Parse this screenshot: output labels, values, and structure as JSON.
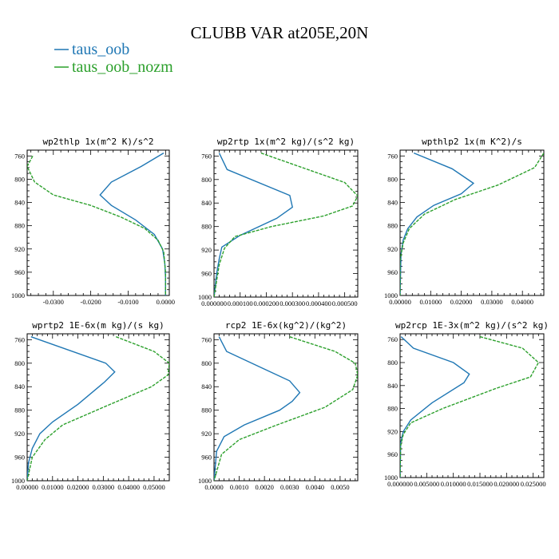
{
  "figure": {
    "title": "CLUBB VAR at205E,20N",
    "legend": [
      {
        "label": "taus_oob",
        "color": "#1f77b4"
      },
      {
        "label": "taus_oob_nozm",
        "color": "#2ca02c"
      }
    ]
  },
  "chart_data": [
    {
      "type": "line",
      "title": "wp2thlp   1x(m^2 K)/s^2",
      "xlim": [
        -0.037,
        0.001
      ],
      "ylim": [
        1000,
        750
      ],
      "xticks": [
        -0.03,
        -0.02,
        -0.01,
        0.0
      ],
      "xtick_labels": [
        "-0.0300",
        "-0.0200",
        "-0.0100",
        "0.0000"
      ],
      "yticks": [
        760,
        800,
        840,
        880,
        920,
        960,
        1000
      ],
      "series": [
        {
          "name": "taus_oob",
          "color": "#1f77b4",
          "dashed": false,
          "x": [
            -0.0005,
            -0.0065,
            -0.0145,
            -0.0175,
            -0.0145,
            -0.008,
            -0.003,
            -0.0008,
            -0.0002,
            0.0,
            0.0
          ],
          "y": [
            755,
            778,
            805,
            827,
            845,
            870,
            895,
            920,
            945,
            970,
            1000
          ]
        },
        {
          "name": "taus_oob_nozm",
          "color": "#2ca02c",
          "dashed": true,
          "x": [
            -0.0355,
            -0.037,
            -0.035,
            -0.03,
            -0.02,
            -0.012,
            -0.0055,
            -0.002,
            -0.0005,
            0.0,
            0.0
          ],
          "y": [
            760,
            778,
            805,
            827,
            845,
            865,
            885,
            905,
            925,
            960,
            1000
          ]
        }
      ]
    },
    {
      "type": "line",
      "title": "wp2rtp   1x(m^2 kg)/(s^2 kg)",
      "xlim": [
        0.0,
        0.00055
      ],
      "ylim": [
        1000,
        750
      ],
      "xticks": [
        0.0,
        0.0001,
        0.0002,
        0.0003,
        0.0004,
        0.0005
      ],
      "xtick_labels": [
        "0.000000",
        "0.000100",
        "0.000200",
        "0.000300",
        "0.000400",
        "0.000500"
      ],
      "yticks": [
        760,
        800,
        840,
        880,
        920,
        960,
        1000
      ],
      "series": [
        {
          "name": "taus_oob",
          "color": "#1f77b4",
          "dashed": false,
          "x": [
            2e-05,
            5e-05,
            0.00029,
            0.0003,
            0.00024,
            0.0001,
            3e-05,
            2e-05,
            1e-05,
            0.0
          ],
          "y": [
            755,
            783,
            827,
            847,
            866,
            895,
            915,
            935,
            960,
            1000
          ]
        },
        {
          "name": "taus_oob_nozm",
          "color": "#2ca02c",
          "dashed": true,
          "x": [
            0.00018,
            0.0005,
            0.00055,
            0.00053,
            0.00042,
            0.00022,
            8e-05,
            4e-05,
            2e-05,
            0.0
          ],
          "y": [
            755,
            805,
            828,
            845,
            862,
            880,
            897,
            917,
            945,
            1000
          ]
        }
      ]
    },
    {
      "type": "line",
      "title": "wpthlp2   1x(m K^2)/s",
      "xlim": [
        0.0,
        0.047
      ],
      "ylim": [
        1000,
        750
      ],
      "xticks": [
        0.0,
        0.01,
        0.02,
        0.03,
        0.04
      ],
      "xtick_labels": [
        "0.00000",
        "0.01000",
        "0.02000",
        "0.03000",
        "0.04000"
      ],
      "yticks": [
        760,
        800,
        840,
        880,
        920,
        960,
        1000
      ],
      "series": [
        {
          "name": "taus_oob",
          "color": "#1f77b4",
          "dashed": false,
          "x": [
            0.0045,
            0.017,
            0.024,
            0.02,
            0.011,
            0.0055,
            0.0025,
            0.001,
            0.0003,
            0.0
          ],
          "y": [
            755,
            782,
            807,
            825,
            845,
            865,
            885,
            905,
            930,
            1000
          ]
        },
        {
          "name": "taus_oob_nozm",
          "color": "#2ca02c",
          "dashed": true,
          "x": [
            0.047,
            0.044,
            0.032,
            0.018,
            0.008,
            0.003,
            0.001,
            0.0,
            0.0
          ],
          "y": [
            755,
            780,
            810,
            835,
            860,
            885,
            910,
            940,
            1000
          ]
        }
      ]
    },
    {
      "type": "line",
      "title": "wprtp2   1E-6x(m kg)/(s kg)",
      "xlim": [
        0.0,
        0.056
      ],
      "ylim": [
        1000,
        750
      ],
      "xticks": [
        0.0,
        0.01,
        0.02,
        0.03,
        0.04,
        0.05
      ],
      "xtick_labels": [
        "0.00000",
        "0.01000",
        "0.02000",
        "0.03000",
        "0.04000",
        "0.05000"
      ],
      "yticks": [
        760,
        800,
        840,
        880,
        920,
        960,
        1000
      ],
      "series": [
        {
          "name": "taus_oob",
          "color": "#1f77b4",
          "dashed": false,
          "x": [
            0.0015,
            0.031,
            0.0345,
            0.0305,
            0.02,
            0.01,
            0.005,
            0.002,
            0.0005,
            0.0
          ],
          "y": [
            755,
            800,
            815,
            832,
            870,
            900,
            920,
            945,
            970,
            1000
          ]
        },
        {
          "name": "taus_oob_nozm",
          "color": "#2ca02c",
          "dashed": true,
          "x": [
            0.035,
            0.05,
            0.056,
            0.0555,
            0.049,
            0.03,
            0.014,
            0.007,
            0.002,
            0.0
          ],
          "y": [
            755,
            780,
            800,
            820,
            840,
            875,
            905,
            930,
            960,
            1000
          ]
        }
      ]
    },
    {
      "type": "line",
      "title": "rcp2   1E-6x(kg^2)/(kg^2)",
      "xlim": [
        0.0,
        0.0057
      ],
      "ylim": [
        1000,
        750
      ],
      "xticks": [
        0.0,
        0.001,
        0.002,
        0.003,
        0.004,
        0.005
      ],
      "xtick_labels": [
        "0.0000",
        "0.0010",
        "0.0020",
        "0.0030",
        "0.0040",
        "0.0050"
      ],
      "yticks": [
        760,
        800,
        840,
        880,
        920,
        960,
        1000
      ],
      "series": [
        {
          "name": "taus_oob",
          "color": "#1f77b4",
          "dashed": false,
          "x": [
            0.0002,
            0.0005,
            0.002,
            0.003,
            0.0034,
            0.0031,
            0.0026,
            0.0012,
            0.0004,
            0.0001,
            0.0
          ],
          "y": [
            755,
            780,
            810,
            830,
            850,
            865,
            880,
            905,
            925,
            950,
            1000
          ]
        },
        {
          "name": "taus_oob_nozm",
          "color": "#2ca02c",
          "dashed": true,
          "x": [
            0.003,
            0.0048,
            0.0056,
            0.0057,
            0.0055,
            0.0044,
            0.0025,
            0.001,
            0.0003,
            0.0
          ],
          "y": [
            755,
            780,
            800,
            820,
            845,
            875,
            905,
            930,
            955,
            1000
          ]
        }
      ]
    },
    {
      "type": "line",
      "title": "wp2rcp   1E-3x(m^2 kg)/(s^2 kg)",
      "xlim": [
        0.0,
        0.027
      ],
      "ylim": [
        1000,
        750
      ],
      "xticks": [
        0.0,
        0.005,
        0.01,
        0.015,
        0.02,
        0.025
      ],
      "xtick_labels": [
        "0.000000",
        "0.005000",
        "0.010000",
        "0.015000",
        "0.020000",
        "0.025000"
      ],
      "yticks": [
        760,
        800,
        840,
        880,
        920,
        960,
        1000
      ],
      "series": [
        {
          "name": "taus_oob",
          "color": "#1f77b4",
          "dashed": false,
          "x": [
            0.0002,
            0.0025,
            0.01,
            0.013,
            0.012,
            0.006,
            0.002,
            0.0006,
            0.0001,
            0.0
          ],
          "y": [
            755,
            775,
            800,
            820,
            835,
            870,
            900,
            920,
            940,
            1000
          ]
        },
        {
          "name": "taus_oob_nozm",
          "color": "#2ca02c",
          "dashed": true,
          "x": [
            0.015,
            0.023,
            0.026,
            0.0245,
            0.018,
            0.008,
            0.002,
            0.0006,
            0.0001,
            0.0
          ],
          "y": [
            755,
            775,
            800,
            825,
            845,
            880,
            905,
            925,
            945,
            1000
          ]
        }
      ]
    }
  ]
}
